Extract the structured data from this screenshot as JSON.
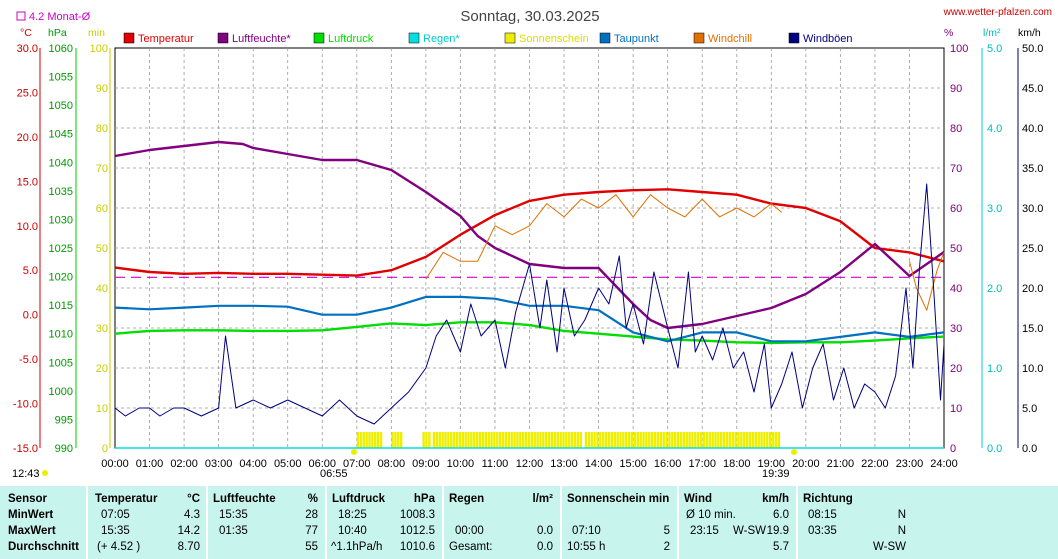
{
  "header": {
    "title": "Sonntag, 30.03.2025",
    "site": "www.wetter-pfalzen.com",
    "monthly_avg": "4.2 Monat-Ø",
    "sunrise": "06:55",
    "sunset": "19:39",
    "daylight_start": "12:43"
  },
  "axes_units": {
    "temp": "°C",
    "pressure": "hPa",
    "sun": "min",
    "humidity": "%",
    "rain": "l/m²",
    "wind": "km/h"
  },
  "colors": {
    "temperature": "#e00000",
    "humidity": "#800080",
    "pressure": "#00dd00",
    "rain": "#00e0e0",
    "sunshine": "#eeee00",
    "dewpoint": "#0070c0",
    "windchill": "#e07000",
    "gusts": "#000080",
    "monthly_avg": "#cc00cc",
    "stats_bg": "#c8f4ee"
  },
  "chart_data": {
    "type": "line",
    "title": "Sonntag, 30.03.2025",
    "x_ticks": [
      "00:00",
      "01:00",
      "02:00",
      "03:00",
      "04:00",
      "05:00",
      "06:00",
      "07:00",
      "08:00",
      "09:00",
      "10:00",
      "11:00",
      "12:00",
      "13:00",
      "14:00",
      "15:00",
      "16:00",
      "17:00",
      "18:00",
      "19:00",
      "20:00",
      "21:00",
      "22:00",
      "23:00",
      "24:00"
    ],
    "axes": {
      "temp": {
        "unit": "°C",
        "range": [
          -15,
          30
        ],
        "ticks": [
          "30.0",
          "25.0",
          "20.0",
          "15.0",
          "10.0",
          "5.0",
          "0.0",
          "-5.0",
          "-10.0",
          "-15.0"
        ]
      },
      "pressure": {
        "unit": "hPa",
        "range": [
          990,
          1060
        ],
        "ticks": [
          "1060",
          "1055",
          "1050",
          "1045",
          "1040",
          "1035",
          "1030",
          "1025",
          "1020",
          "1015",
          "1010",
          "1005",
          "1000",
          "995",
          "990"
        ]
      },
      "sun": {
        "unit": "min",
        "range": [
          0,
          100
        ],
        "ticks": [
          "100",
          "90",
          "80",
          "70",
          "60",
          "50",
          "40",
          "30",
          "20",
          "10",
          "0"
        ]
      },
      "humidity": {
        "unit": "%",
        "range": [
          0,
          100
        ],
        "ticks": [
          "100",
          "90",
          "80",
          "70",
          "60",
          "50",
          "40",
          "30",
          "20",
          "10",
          "0"
        ]
      },
      "rain": {
        "unit": "l/m²",
        "range": [
          0,
          5
        ],
        "ticks": [
          "5.0",
          "4.0",
          "3.0",
          "2.0",
          "1.0",
          "0.0"
        ]
      },
      "wind": {
        "unit": "km/h",
        "range": [
          0,
          50
        ],
        "ticks": [
          "50.0",
          "45.0",
          "40.0",
          "35.0",
          "30.0",
          "25.0",
          "20.0",
          "15.0",
          "10.0",
          "5.0",
          "0.0"
        ]
      }
    },
    "monthly_avg_temp": 4.2,
    "legend": [
      {
        "name": "Temperatur",
        "color": "#e00000"
      },
      {
        "name": "Luftfeuchte*",
        "color": "#800080"
      },
      {
        "name": "Luftdruck",
        "color": "#00dd00"
      },
      {
        "name": "Regen*",
        "color": "#00e0e0"
      },
      {
        "name": "Sonnenschein",
        "color": "#eeee00"
      },
      {
        "name": "Taupunkt",
        "color": "#0070c0"
      },
      {
        "name": "Windchill",
        "color": "#e07000"
      },
      {
        "name": "Windböen",
        "color": "#000080"
      }
    ],
    "series": [
      {
        "name": "Temperatur",
        "axis": "temp",
        "color": "#e00000",
        "points": [
          [
            0,
            5.3
          ],
          [
            1,
            4.8
          ],
          [
            2,
            4.6
          ],
          [
            3,
            4.7
          ],
          [
            4,
            4.6
          ],
          [
            5,
            4.6
          ],
          [
            6,
            4.5
          ],
          [
            7,
            4.4
          ],
          [
            8,
            5
          ],
          [
            9,
            6.5
          ],
          [
            10,
            9
          ],
          [
            11,
            11.2
          ],
          [
            12,
            12.8
          ],
          [
            13,
            13.5
          ],
          [
            14,
            13.8
          ],
          [
            15,
            14
          ],
          [
            16,
            14.1
          ],
          [
            17,
            13.8
          ],
          [
            18,
            13.5
          ],
          [
            19,
            12.5
          ],
          [
            20,
            12
          ],
          [
            21,
            10.5
          ],
          [
            22,
            7.5
          ],
          [
            23,
            7
          ],
          [
            24,
            6
          ]
        ]
      },
      {
        "name": "Luftfeuchte*",
        "axis": "humidity",
        "color": "#800080",
        "points": [
          [
            0,
            73
          ],
          [
            1,
            74.5
          ],
          [
            2,
            75.5
          ],
          [
            3,
            76.5
          ],
          [
            3.7,
            76
          ],
          [
            4,
            75
          ],
          [
            5,
            73.5
          ],
          [
            6,
            72
          ],
          [
            7,
            72
          ],
          [
            8,
            69.5
          ],
          [
            9,
            64
          ],
          [
            10,
            58
          ],
          [
            10.5,
            53
          ],
          [
            11,
            50
          ],
          [
            12,
            46
          ],
          [
            13,
            45
          ],
          [
            14,
            45
          ],
          [
            15,
            36
          ],
          [
            15.5,
            32
          ],
          [
            16,
            30
          ],
          [
            17,
            31
          ],
          [
            18,
            33
          ],
          [
            19,
            35
          ],
          [
            20,
            38.5
          ],
          [
            21,
            44
          ],
          [
            22,
            51
          ],
          [
            23,
            43
          ],
          [
            24,
            49
          ]
        ]
      },
      {
        "name": "Luftdruck",
        "axis": "pressure",
        "color": "#00dd00",
        "points": [
          [
            0,
            1010
          ],
          [
            1,
            1010.5
          ],
          [
            2,
            1010.6
          ],
          [
            3,
            1010.6
          ],
          [
            4,
            1010.5
          ],
          [
            5,
            1010.5
          ],
          [
            6,
            1010.6
          ],
          [
            7,
            1011.2
          ],
          [
            8,
            1011.8
          ],
          [
            9,
            1011.5
          ],
          [
            10,
            1012
          ],
          [
            11,
            1012
          ],
          [
            12,
            1011.5
          ],
          [
            13,
            1010.5
          ],
          [
            14,
            1010
          ],
          [
            15,
            1009.5
          ],
          [
            16,
            1009
          ],
          [
            17,
            1008.8
          ],
          [
            18,
            1008.5
          ],
          [
            19,
            1008.4
          ],
          [
            20,
            1008.5
          ],
          [
            21,
            1008.5
          ],
          [
            22,
            1008.8
          ],
          [
            23,
            1009.2
          ],
          [
            24,
            1009.5
          ]
        ]
      },
      {
        "name": "Taupunkt",
        "axis": "temp",
        "color": "#0070c0",
        "points": [
          [
            0,
            0.8
          ],
          [
            1,
            0.6
          ],
          [
            2,
            0.8
          ],
          [
            3,
            1
          ],
          [
            4,
            1
          ],
          [
            5,
            0.9
          ],
          [
            6,
            0
          ],
          [
            7,
            0
          ],
          [
            8,
            0.8
          ],
          [
            9,
            2
          ],
          [
            10,
            2
          ],
          [
            11,
            1.8
          ],
          [
            12,
            1
          ],
          [
            13,
            1
          ],
          [
            14,
            0.5
          ],
          [
            15,
            -2
          ],
          [
            16,
            -3
          ],
          [
            17,
            -2
          ],
          [
            18,
            -2
          ],
          [
            19,
            -3
          ],
          [
            20,
            -3
          ],
          [
            21,
            -2.5
          ],
          [
            22,
            -2
          ],
          [
            23,
            -2.5
          ],
          [
            24,
            -2
          ]
        ]
      },
      {
        "name": "Windchill",
        "axis": "temp",
        "color": "#e07000",
        "points": [
          [
            9,
            4
          ],
          [
            9.5,
            7
          ],
          [
            10,
            6
          ],
          [
            10.5,
            6
          ],
          [
            11,
            10
          ],
          [
            11.5,
            9
          ],
          [
            12,
            10
          ],
          [
            12.5,
            12.5
          ],
          [
            13,
            11
          ],
          [
            13.5,
            13
          ],
          [
            14,
            12
          ],
          [
            14.5,
            13.5
          ],
          [
            15,
            11
          ],
          [
            15.5,
            13.5
          ],
          [
            16,
            12
          ],
          [
            16.5,
            11
          ],
          [
            17,
            13
          ],
          [
            17.5,
            11
          ],
          [
            18,
            12
          ],
          [
            18.5,
            11
          ],
          [
            19,
            12.5
          ],
          [
            19.3,
            11.5
          ]
        ]
      },
      {
        "name": "Windchill",
        "axis": "temp",
        "color": "#e07000",
        "points": [
          [
            23,
            6
          ],
          [
            23.2,
            3
          ],
          [
            23.5,
            0.5
          ],
          [
            23.8,
            5
          ],
          [
            24,
            7
          ]
        ]
      },
      {
        "name": "Windböen",
        "axis": "wind",
        "color": "#000080",
        "points": [
          [
            0,
            5
          ],
          [
            0.3,
            4
          ],
          [
            0.7,
            5
          ],
          [
            1,
            5
          ],
          [
            1.3,
            4
          ],
          [
            1.7,
            5
          ],
          [
            2,
            5
          ],
          [
            2.5,
            4
          ],
          [
            3,
            5
          ],
          [
            3.2,
            14
          ],
          [
            3.5,
            5
          ],
          [
            4,
            6
          ],
          [
            4.5,
            5
          ],
          [
            5,
            6
          ],
          [
            5.5,
            5
          ],
          [
            6,
            4
          ],
          [
            6.5,
            6
          ],
          [
            7,
            4
          ],
          [
            7.5,
            3
          ],
          [
            8,
            5
          ],
          [
            8.5,
            7
          ],
          [
            9,
            10
          ],
          [
            9.3,
            14
          ],
          [
            9.6,
            16
          ],
          [
            10,
            12
          ],
          [
            10.3,
            18
          ],
          [
            10.6,
            14
          ],
          [
            11,
            16
          ],
          [
            11.3,
            10
          ],
          [
            11.6,
            17
          ],
          [
            12,
            23
          ],
          [
            12.3,
            15
          ],
          [
            12.5,
            21
          ],
          [
            12.8,
            12
          ],
          [
            13,
            20
          ],
          [
            13.3,
            14
          ],
          [
            13.6,
            16
          ],
          [
            14,
            20
          ],
          [
            14.3,
            18
          ],
          [
            14.6,
            24
          ],
          [
            14.8,
            15
          ],
          [
            15,
            18
          ],
          [
            15.3,
            13
          ],
          [
            15.6,
            22
          ],
          [
            16,
            15
          ],
          [
            16.3,
            10
          ],
          [
            16.6,
            22
          ],
          [
            16.8,
            12
          ],
          [
            17,
            14
          ],
          [
            17.3,
            11
          ],
          [
            17.6,
            15
          ],
          [
            17.9,
            10
          ],
          [
            18.2,
            12
          ],
          [
            18.5,
            7
          ],
          [
            18.8,
            13
          ],
          [
            19,
            5
          ],
          [
            19.3,
            8
          ],
          [
            19.6,
            12
          ],
          [
            19.9,
            5
          ],
          [
            20.2,
            10
          ],
          [
            20.5,
            13
          ],
          [
            20.8,
            6
          ],
          [
            21.1,
            10
          ],
          [
            21.4,
            5
          ],
          [
            21.7,
            8
          ],
          [
            22,
            7
          ],
          [
            22.3,
            5
          ],
          [
            22.6,
            9
          ],
          [
            22.9,
            20
          ],
          [
            23.1,
            10
          ],
          [
            23.3,
            23
          ],
          [
            23.5,
            33
          ],
          [
            23.7,
            20
          ],
          [
            23.9,
            6
          ],
          [
            24,
            13
          ]
        ]
      },
      {
        "name": "Regen*",
        "axis": "rain",
        "color": "#00e0e0",
        "points": [
          [
            0,
            0
          ],
          [
            24,
            0
          ]
        ]
      }
    ],
    "sunshine_bars": [
      [
        7.0,
        7.5,
        4
      ],
      [
        7.5,
        7.7,
        4
      ],
      [
        8.0,
        8.3,
        4
      ],
      [
        8.9,
        9.1,
        4
      ],
      [
        9.2,
        13.5,
        4
      ],
      [
        13.6,
        19.2,
        4
      ]
    ]
  },
  "stats": {
    "headers": [
      {
        "label": "Sensor"
      },
      {
        "label": "Temperatur",
        "unit": "°C"
      },
      {
        "label": "Luftfeuchte",
        "unit": "%"
      },
      {
        "label": "Luftdruck",
        "unit": "hPa"
      },
      {
        "label": "Regen",
        "unit": "l/m²"
      },
      {
        "label": "Sonnenschein min",
        "unit": ""
      },
      {
        "label": "Wind",
        "unit": "km/h"
      },
      {
        "label": "Richtung",
        "unit": ""
      }
    ],
    "rows": [
      {
        "label": "MinWert",
        "temp_time": "07:05",
        "temp_val": "4.3",
        "hum_time": "15:35",
        "hum_val": "28",
        "pres_time": "18:25",
        "pres_val": "1008.3",
        "rain_time": "",
        "rain_val": "",
        "sun_time": "",
        "sun_val": "",
        "wind_time": "Ø 10 min.",
        "wind_dir": "",
        "wind_val": "6.0",
        "dir_time": "08:15",
        "dir_val": "N"
      },
      {
        "label": "MaxWert",
        "temp_time": "15:35",
        "temp_val": "14.2",
        "hum_time": "01:35",
        "hum_val": "77",
        "pres_time": "10:40",
        "pres_val": "1012.5",
        "rain_time": "00:00",
        "rain_val": "0.0",
        "sun_time": "07:10",
        "sun_val": "5",
        "wind_time": "23:15",
        "wind_dir": "W-SW",
        "wind_val": "19.9",
        "dir_time": "03:35",
        "dir_val": "N"
      },
      {
        "label": "Durchschnitt",
        "temp_time": "(+ 4.52 )",
        "temp_val": "8.70",
        "hum_time": "",
        "hum_val": "55",
        "pres_time": "^1.1hPa/h",
        "pres_val": "1010.6",
        "rain_time": "Gesamt:",
        "rain_val": "0.0",
        "sun_time": "10:55 h",
        "sun_val": "2",
        "wind_time": "",
        "wind_dir": "",
        "wind_val": "5.7",
        "dir_time": "",
        "dir_val": "W-SW"
      }
    ]
  }
}
